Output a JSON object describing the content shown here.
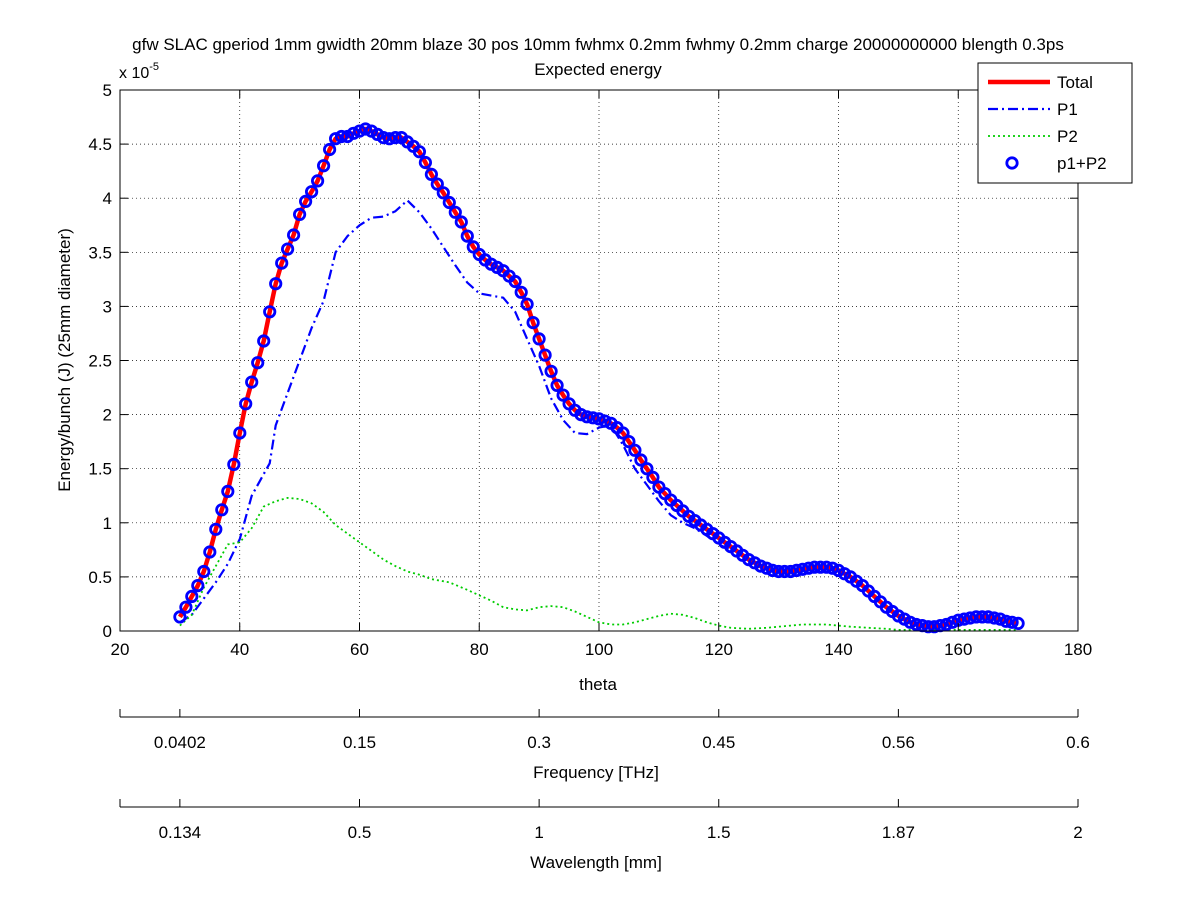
{
  "chart_data": {
    "type": "line",
    "title_line1": "gfw SLAC gperiod 1mm gwidth 20mm blaze 30 pos 10mm fwhmx 0.2mm fwhmy 0.2mm charge 20000000000 blength 0.3ps",
    "title_line2": "Expected energy",
    "xlabel": "theta",
    "ylabel": "Energy/bunch (J) (25mm diameter)",
    "y_exponent_base": "x 10",
    "y_exponent_power": "-5",
    "xlim": [
      20,
      180
    ],
    "ylim": [
      0,
      5
    ],
    "grid": true,
    "legend_position": "top-right",
    "x_ticks": [
      20,
      40,
      60,
      80,
      100,
      120,
      140,
      160,
      180
    ],
    "x_tick_labels": [
      "20",
      "40",
      "60",
      "80",
      "100",
      "120",
      "140",
      "160",
      "180"
    ],
    "y_ticks": [
      0,
      0.5,
      1,
      1.5,
      2,
      2.5,
      3,
      3.5,
      4,
      4.5,
      5
    ],
    "y_tick_labels": [
      "0",
      "0.5",
      "1",
      "1.5",
      "2",
      "2.5",
      "3",
      "3.5",
      "4",
      "4.5",
      "5"
    ],
    "series": [
      {
        "name": "Total",
        "color": "#ff0000",
        "style": "solid-thick",
        "anchors": [
          [
            30,
            0.13
          ],
          [
            31,
            0.22
          ],
          [
            32,
            0.32
          ],
          [
            33,
            0.42
          ],
          [
            34,
            0.55
          ],
          [
            35,
            0.73
          ],
          [
            36,
            0.94
          ],
          [
            37,
            1.12
          ],
          [
            38,
            1.29
          ],
          [
            39,
            1.54
          ],
          [
            40,
            1.83
          ],
          [
            41,
            2.1
          ],
          [
            42,
            2.3
          ],
          [
            43,
            2.48
          ],
          [
            44,
            2.68
          ],
          [
            45,
            2.95
          ],
          [
            46,
            3.21
          ],
          [
            47,
            3.4
          ],
          [
            48,
            3.53
          ],
          [
            49,
            3.66
          ],
          [
            50,
            3.85
          ],
          [
            51,
            3.97
          ],
          [
            52,
            4.06
          ],
          [
            53,
            4.16
          ],
          [
            54,
            4.3
          ],
          [
            55,
            4.45
          ],
          [
            56,
            4.55
          ],
          [
            57,
            4.57
          ],
          [
            58,
            4.57
          ],
          [
            59,
            4.6
          ],
          [
            60,
            4.62
          ],
          [
            61,
            4.64
          ],
          [
            62,
            4.62
          ],
          [
            63,
            4.59
          ],
          [
            64,
            4.56
          ],
          [
            65,
            4.55
          ],
          [
            66,
            4.56
          ],
          [
            67,
            4.56
          ],
          [
            68,
            4.52
          ],
          [
            69,
            4.48
          ],
          [
            70,
            4.43
          ],
          [
            71,
            4.33
          ],
          [
            72,
            4.22
          ],
          [
            73,
            4.13
          ],
          [
            74,
            4.05
          ],
          [
            75,
            3.96
          ],
          [
            76,
            3.87
          ],
          [
            77,
            3.78
          ],
          [
            78,
            3.65
          ],
          [
            79,
            3.55
          ],
          [
            80,
            3.48
          ],
          [
            81,
            3.43
          ],
          [
            82,
            3.39
          ],
          [
            83,
            3.36
          ],
          [
            84,
            3.33
          ],
          [
            85,
            3.28
          ],
          [
            86,
            3.23
          ],
          [
            87,
            3.13
          ],
          [
            88,
            3.02
          ],
          [
            89,
            2.85
          ],
          [
            90,
            2.7
          ],
          [
            91,
            2.55
          ],
          [
            92,
            2.4
          ],
          [
            93,
            2.27
          ],
          [
            94,
            2.18
          ],
          [
            95,
            2.1
          ],
          [
            96,
            2.04
          ],
          [
            97,
            2.0
          ],
          [
            98,
            1.98
          ],
          [
            99,
            1.97
          ],
          [
            100,
            1.96
          ],
          [
            101,
            1.94
          ],
          [
            102,
            1.92
          ],
          [
            103,
            1.88
          ],
          [
            104,
            1.83
          ],
          [
            105,
            1.75
          ],
          [
            106,
            1.67
          ],
          [
            107,
            1.58
          ],
          [
            108,
            1.5
          ],
          [
            109,
            1.42
          ],
          [
            110,
            1.33
          ],
          [
            111,
            1.27
          ],
          [
            112,
            1.21
          ],
          [
            113,
            1.16
          ],
          [
            114,
            1.11
          ],
          [
            115,
            1.06
          ],
          [
            116,
            1.02
          ],
          [
            117,
            0.98
          ],
          [
            118,
            0.94
          ],
          [
            119,
            0.9
          ],
          [
            120,
            0.86
          ],
          [
            121,
            0.82
          ],
          [
            122,
            0.78
          ],
          [
            123,
            0.74
          ],
          [
            124,
            0.7
          ],
          [
            125,
            0.66
          ],
          [
            126,
            0.63
          ],
          [
            127,
            0.6
          ],
          [
            128,
            0.58
          ],
          [
            129,
            0.56
          ],
          [
            130,
            0.55
          ],
          [
            131,
            0.55
          ],
          [
            132,
            0.55
          ],
          [
            133,
            0.56
          ],
          [
            134,
            0.57
          ],
          [
            135,
            0.58
          ],
          [
            136,
            0.59
          ],
          [
            137,
            0.59
          ],
          [
            138,
            0.59
          ],
          [
            139,
            0.58
          ],
          [
            140,
            0.56
          ],
          [
            141,
            0.53
          ],
          [
            142,
            0.5
          ],
          [
            143,
            0.46
          ],
          [
            144,
            0.42
          ],
          [
            145,
            0.37
          ],
          [
            146,
            0.32
          ],
          [
            147,
            0.27
          ],
          [
            148,
            0.22
          ],
          [
            149,
            0.18
          ],
          [
            150,
            0.14
          ],
          [
            151,
            0.11
          ],
          [
            152,
            0.08
          ],
          [
            153,
            0.06
          ],
          [
            154,
            0.05
          ],
          [
            155,
            0.04
          ],
          [
            156,
            0.04
          ],
          [
            157,
            0.05
          ],
          [
            158,
            0.06
          ],
          [
            159,
            0.08
          ],
          [
            160,
            0.1
          ],
          [
            161,
            0.11
          ],
          [
            162,
            0.12
          ],
          [
            163,
            0.13
          ],
          [
            164,
            0.13
          ],
          [
            165,
            0.13
          ],
          [
            166,
            0.12
          ],
          [
            167,
            0.11
          ],
          [
            168,
            0.09
          ],
          [
            169,
            0.08
          ],
          [
            170,
            0.07
          ]
        ]
      },
      {
        "name": "P1",
        "color": "#0000ff",
        "style": "dash-dot",
        "anchors": [
          [
            30,
            0.08
          ],
          [
            32,
            0.15
          ],
          [
            34,
            0.3
          ],
          [
            36,
            0.45
          ],
          [
            38,
            0.62
          ],
          [
            40,
            0.85
          ],
          [
            42,
            1.25
          ],
          [
            44,
            1.45
          ],
          [
            45,
            1.55
          ],
          [
            46,
            1.9
          ],
          [
            48,
            2.2
          ],
          [
            50,
            2.5
          ],
          [
            52,
            2.8
          ],
          [
            54,
            3.05
          ],
          [
            56,
            3.5
          ],
          [
            58,
            3.65
          ],
          [
            60,
            3.75
          ],
          [
            62,
            3.82
          ],
          [
            64,
            3.83
          ],
          [
            66,
            3.88
          ],
          [
            68,
            3.98
          ],
          [
            70,
            3.87
          ],
          [
            72,
            3.72
          ],
          [
            74,
            3.55
          ],
          [
            76,
            3.38
          ],
          [
            78,
            3.22
          ],
          [
            80,
            3.12
          ],
          [
            82,
            3.1
          ],
          [
            84,
            3.08
          ],
          [
            86,
            2.95
          ],
          [
            88,
            2.7
          ],
          [
            90,
            2.45
          ],
          [
            92,
            2.15
          ],
          [
            94,
            1.95
          ],
          [
            96,
            1.83
          ],
          [
            98,
            1.82
          ],
          [
            100,
            1.88
          ],
          [
            102,
            1.9
          ],
          [
            104,
            1.72
          ],
          [
            106,
            1.5
          ],
          [
            108,
            1.35
          ],
          [
            110,
            1.2
          ],
          [
            112,
            1.07
          ],
          [
            114,
            1.0
          ],
          [
            116,
            0.95
          ],
          [
            118,
            0.88
          ],
          [
            120,
            0.8
          ],
          [
            122,
            0.75
          ]
        ]
      },
      {
        "name": "P2",
        "color": "#00cc00",
        "style": "dotted",
        "anchors": [
          [
            30,
            0.05
          ],
          [
            32,
            0.15
          ],
          [
            34,
            0.4
          ],
          [
            36,
            0.6
          ],
          [
            38,
            0.8
          ],
          [
            40,
            0.82
          ],
          [
            42,
            0.95
          ],
          [
            44,
            1.15
          ],
          [
            46,
            1.2
          ],
          [
            48,
            1.23
          ],
          [
            50,
            1.22
          ],
          [
            52,
            1.18
          ],
          [
            54,
            1.1
          ],
          [
            56,
            0.98
          ],
          [
            58,
            0.9
          ],
          [
            60,
            0.82
          ],
          [
            62,
            0.74
          ],
          [
            64,
            0.66
          ],
          [
            66,
            0.6
          ],
          [
            68,
            0.55
          ],
          [
            70,
            0.52
          ],
          [
            72,
            0.48
          ],
          [
            75,
            0.45
          ],
          [
            78,
            0.38
          ],
          [
            80,
            0.33
          ],
          [
            82,
            0.28
          ],
          [
            84,
            0.22
          ],
          [
            86,
            0.2
          ],
          [
            88,
            0.19
          ],
          [
            90,
            0.22
          ],
          [
            92,
            0.23
          ],
          [
            94,
            0.22
          ],
          [
            96,
            0.18
          ],
          [
            98,
            0.13
          ],
          [
            100,
            0.08
          ],
          [
            102,
            0.06
          ],
          [
            104,
            0.06
          ],
          [
            106,
            0.08
          ],
          [
            108,
            0.11
          ],
          [
            110,
            0.14
          ],
          [
            112,
            0.16
          ],
          [
            114,
            0.15
          ],
          [
            116,
            0.12
          ],
          [
            118,
            0.08
          ],
          [
            120,
            0.05
          ],
          [
            122,
            0.03
          ],
          [
            125,
            0.02
          ],
          [
            128,
            0.03
          ],
          [
            130,
            0.04
          ],
          [
            132,
            0.05
          ],
          [
            134,
            0.06
          ],
          [
            136,
            0.06
          ],
          [
            138,
            0.06
          ],
          [
            140,
            0.05
          ],
          [
            142,
            0.04
          ],
          [
            145,
            0.03
          ],
          [
            148,
            0.02
          ],
          [
            150,
            0.01
          ],
          [
            155,
            0.01
          ],
          [
            160,
            0.01
          ],
          [
            165,
            0.01
          ],
          [
            170,
            0.01
          ]
        ]
      },
      {
        "name": "p1+P2",
        "color": "#0000ff",
        "style": "circles",
        "same_as": "Total"
      }
    ],
    "frequency_axis": {
      "label": "Frequency [THz]",
      "tick_x": [
        20,
        30,
        60,
        90,
        120,
        150,
        180
      ],
      "tick_labels": [
        "",
        "0.0402",
        "0.15",
        "0.3",
        "0.45",
        "0.56",
        "0.6"
      ],
      "tick_label_x": [
        30,
        60,
        90,
        120,
        150,
        180
      ]
    },
    "wavelength_axis": {
      "label": "Wavelength [mm]",
      "tick_x": [
        20,
        30,
        60,
        90,
        120,
        150,
        180
      ],
      "tick_labels": [
        "",
        "0.134",
        "0.5",
        "1",
        "1.5",
        "1.87",
        "2"
      ],
      "tick_label_x": [
        30,
        60,
        90,
        120,
        150,
        180
      ]
    }
  }
}
